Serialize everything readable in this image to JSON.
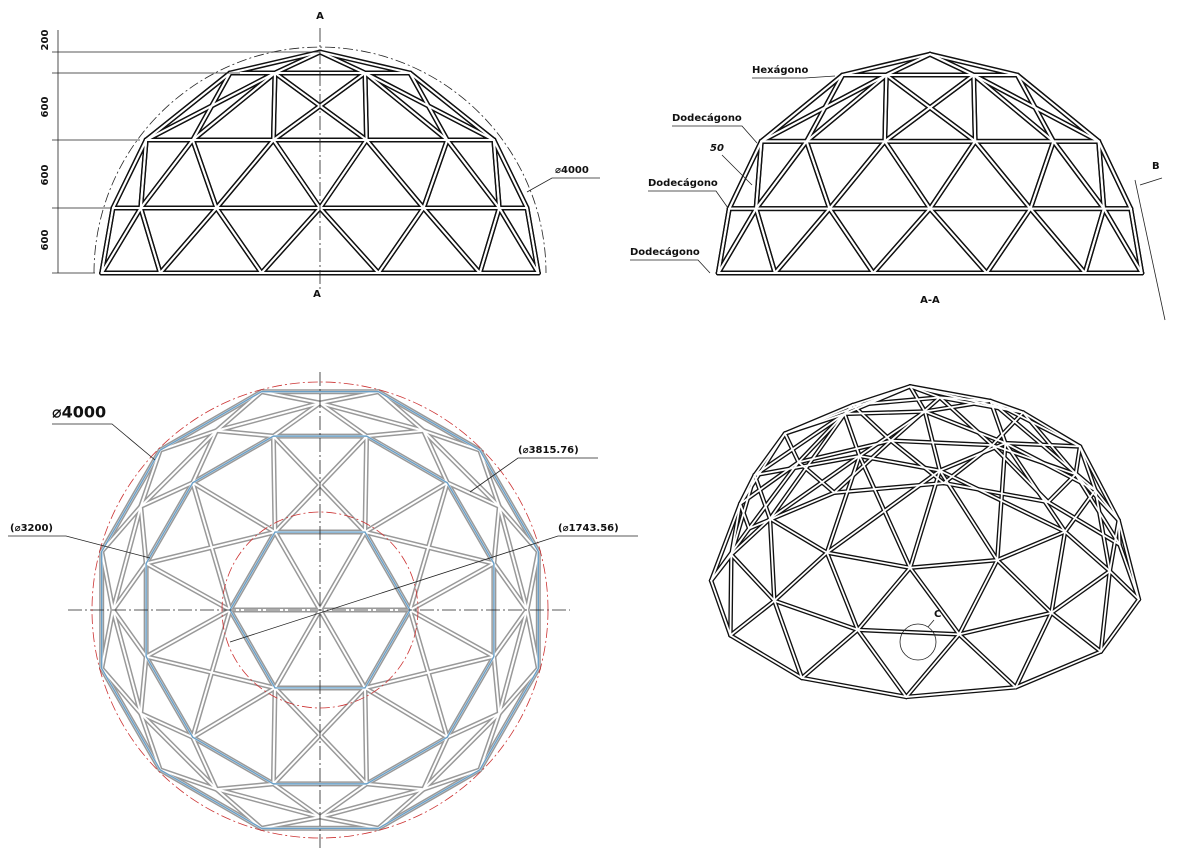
{
  "front_view": {
    "section_marks": [
      "A",
      "A"
    ],
    "dimensions": [
      "200",
      "600",
      "600",
      "600"
    ],
    "diameter": "⌀4000"
  },
  "section_view": {
    "labels": [
      "Hexágono",
      "Dodecágono",
      "Dodecágono",
      "Dodecágono"
    ],
    "dimension": "50",
    "detail_mark": "B",
    "caption": "A-A"
  },
  "plan_view": {
    "diameters": [
      "⌀4000",
      "(⌀3815.76)",
      "(⌀3200)",
      "(⌀1743.56)"
    ]
  },
  "iso_view": {
    "detail_mark": "C"
  }
}
